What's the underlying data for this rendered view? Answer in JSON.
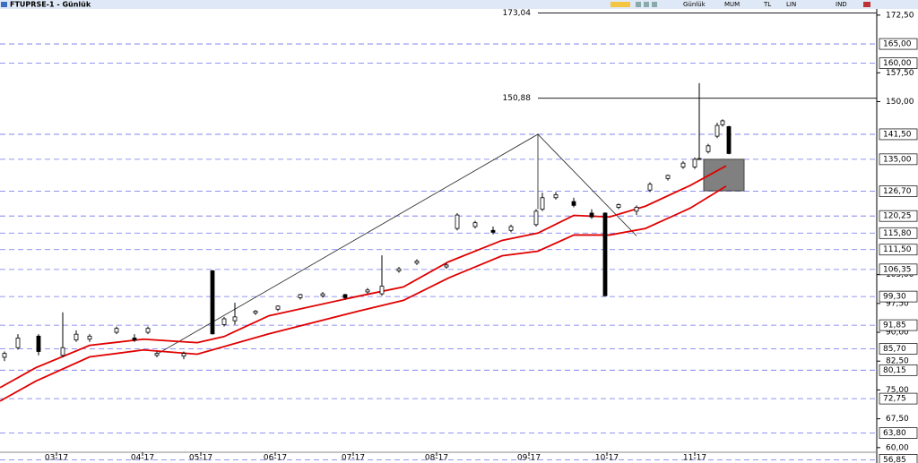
{
  "chart_data": {
    "type": "candlestick",
    "title": "FTUPRSE-1  - Günlük",
    "toolbar": [
      "Günlük",
      "MUM",
      "TL",
      "LIN",
      "IND"
    ],
    "xlim": [
      0,
      195.6
    ],
    "ylim": [
      56,
      174.1
    ],
    "xticks": [
      {
        "value": 12.6,
        "label": "03-17"
      },
      {
        "value": 31.8,
        "label": "04-17"
      },
      {
        "value": 44.8,
        "label": "05-17"
      },
      {
        "value": 61.4,
        "label": "06-17"
      },
      {
        "value": 78.8,
        "label": "07-17"
      },
      {
        "value": 97.4,
        "label": "08-17"
      },
      {
        "value": 118,
        "label": "09-17"
      },
      {
        "value": 135.4,
        "label": "10-17"
      },
      {
        "value": 155,
        "label": "11-17"
      }
    ],
    "yticks": [
      {
        "value": 172.5,
        "label": "172,50"
      },
      {
        "value": 157.5,
        "label": "157,50"
      },
      {
        "value": 150,
        "label": "150,00"
      },
      {
        "value": 105,
        "label": "105,00"
      },
      {
        "value": 97.5,
        "label": "97,50"
      },
      {
        "value": 90,
        "label": "90,00"
      },
      {
        "value": 82.5,
        "label": "82,50"
      },
      {
        "value": 75,
        "label": "75,00"
      },
      {
        "value": 67.5,
        "label": "67,50"
      },
      {
        "value": 60,
        "label": "60,00"
      }
    ],
    "levels": [
      {
        "value": 165,
        "label": "165,00"
      },
      {
        "value": 160,
        "label": "160,00"
      },
      {
        "value": 141.5,
        "label": "141,50"
      },
      {
        "value": 135,
        "label": "135,00"
      },
      {
        "value": 126.7,
        "label": "126,70"
      },
      {
        "value": 120.25,
        "label": "120,25"
      },
      {
        "value": 115.8,
        "label": "115,80"
      },
      {
        "value": 111.5,
        "label": "111,50"
      },
      {
        "value": 106.35,
        "label": "106,35"
      },
      {
        "value": 99.3,
        "label": "99,30"
      },
      {
        "value": 91.85,
        "label": "91,85"
      },
      {
        "value": 85.7,
        "label": "85,70"
      },
      {
        "value": 80.15,
        "label": "80,15"
      },
      {
        "value": 72.75,
        "label": "72,75"
      },
      {
        "value": 63.8,
        "label": "63,80"
      },
      {
        "value": 56.85,
        "label": "56,85"
      }
    ],
    "marked_levels": [
      {
        "value": 173.04,
        "label": "173,04",
        "from": 120
      },
      {
        "value": 150.88,
        "label": "150,88",
        "from": 120
      }
    ],
    "candles": {
      "x": [
        1,
        4,
        8.6,
        14,
        17,
        20,
        26,
        30,
        33,
        35,
        41,
        47.4,
        50,
        52.4,
        57,
        62,
        67,
        72,
        77,
        82,
        85.2,
        89,
        93,
        99.6,
        102,
        106,
        110,
        114,
        119.6,
        121,
        124,
        128,
        132,
        135,
        138,
        142,
        145,
        149,
        152.4,
        155,
        156,
        158,
        160,
        161.2,
        162.6
      ],
      "open": [
        83.5,
        86,
        89,
        84,
        88,
        88.2,
        90,
        88.5,
        90,
        84,
        83.8,
        106,
        92,
        93,
        95,
        96,
        99,
        99.5,
        99.8,
        100.5,
        100,
        106,
        108,
        107,
        117,
        117.5,
        116.5,
        116.5,
        118,
        122,
        125,
        124,
        121,
        121,
        122.5,
        121.5,
        127,
        130,
        133,
        133,
        135,
        137,
        141,
        144,
        143.5
      ],
      "high": [
        85,
        89.5,
        89.5,
        95.2,
        90.5,
        89.5,
        91.5,
        89.5,
        91.5,
        85,
        85,
        106.2,
        94,
        97.7,
        95.8,
        97,
        100,
        100.5,
        100,
        101.5,
        110,
        107,
        109,
        108,
        121,
        119,
        117.5,
        118,
        122,
        126.3,
        126.5,
        125,
        122,
        121.2,
        123.5,
        123,
        129,
        131,
        134.5,
        135.5,
        154.8,
        139,
        144.5,
        145.4,
        143.7
      ],
      "low": [
        82.5,
        85.5,
        84,
        83.5,
        87.5,
        87.5,
        89.5,
        87.5,
        89.5,
        83.5,
        83,
        89.4,
        91.5,
        92,
        94.5,
        95.5,
        98.5,
        99,
        98.5,
        100,
        99.5,
        105.5,
        107.5,
        106.5,
        116.5,
        117,
        115.5,
        116,
        117.5,
        121.5,
        124.5,
        122.5,
        119.5,
        99.4,
        122,
        120.5,
        126.5,
        129.5,
        132.5,
        132.5,
        134.8,
        136.5,
        140.5,
        143.5,
        136.3
      ],
      "close": [
        84.5,
        88.5,
        85,
        86,
        89.5,
        89,
        91,
        88,
        91,
        84.5,
        84.5,
        89.6,
        93.5,
        94,
        95.5,
        96.8,
        99.8,
        100,
        99,
        101,
        102,
        106.5,
        108.5,
        107.5,
        120.5,
        118.5,
        116,
        117.5,
        121.5,
        125,
        125.8,
        123,
        120,
        99.5,
        123.2,
        122.5,
        128.5,
        130.8,
        134,
        135,
        135.2,
        138.5,
        143.8,
        145,
        136.5
      ]
    },
    "ma_fast": {
      "color": "#e00000",
      "x": [
        0,
        8,
        20,
        32,
        44,
        50,
        60,
        80,
        90,
        100,
        112,
        120,
        128,
        136,
        144,
        154,
        162
      ],
      "values": [
        75.6,
        80.8,
        86.6,
        88.2,
        87.3,
        88.9,
        94.3,
        99.4,
        101.8,
        108.3,
        113.9,
        115.8,
        120.4,
        120,
        122.8,
        128.2,
        133.3
      ]
    },
    "ma_slow": {
      "color": "#e00000",
      "x": [
        0,
        8,
        20,
        32,
        44,
        60,
        80,
        90,
        100,
        112,
        120,
        128,
        136,
        144,
        154,
        162
      ],
      "values": [
        72.1,
        77.3,
        83.6,
        85.4,
        84.3,
        89.6,
        95.5,
        98.3,
        104.1,
        109.9,
        111.1,
        115.3,
        115.3,
        117,
        122.3,
        128
      ]
    },
    "trendline": {
      "x": [
        35,
        120,
        120,
        120,
        142
      ],
      "values": [
        84.3,
        141.5,
        122,
        141.5,
        115.1
      ]
    },
    "zone": {
      "x": [
        157,
        166
      ],
      "values": [
        135,
        126.8
      ]
    }
  }
}
